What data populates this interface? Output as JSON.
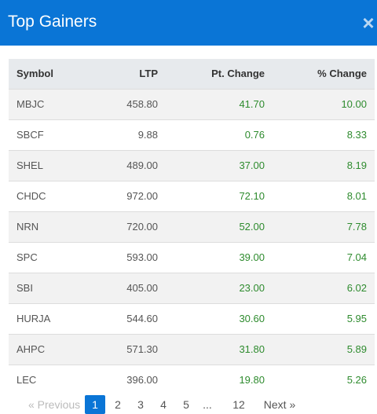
{
  "header": {
    "title": "Top Gainers",
    "close_glyph": "×"
  },
  "table": {
    "columns": [
      "Symbol",
      "LTP",
      "Pt. Change",
      "% Change"
    ],
    "rows": [
      {
        "symbol": "MBJC",
        "ltp": "458.80",
        "pt_change": "41.70",
        "pct_change": "10.00"
      },
      {
        "symbol": "SBCF",
        "ltp": "9.88",
        "pt_change": "0.76",
        "pct_change": "8.33"
      },
      {
        "symbol": "SHEL",
        "ltp": "489.00",
        "pt_change": "37.00",
        "pct_change": "8.19"
      },
      {
        "symbol": "CHDC",
        "ltp": "972.00",
        "pt_change": "72.10",
        "pct_change": "8.01"
      },
      {
        "symbol": "NRN",
        "ltp": "720.00",
        "pt_change": "52.00",
        "pct_change": "7.78"
      },
      {
        "symbol": "SPC",
        "ltp": "593.00",
        "pt_change": "39.00",
        "pct_change": "7.04"
      },
      {
        "symbol": "SBI",
        "ltp": "405.00",
        "pt_change": "23.00",
        "pct_change": "6.02"
      },
      {
        "symbol": "HURJA",
        "ltp": "544.60",
        "pt_change": "30.60",
        "pct_change": "5.95"
      },
      {
        "symbol": "AHPC",
        "ltp": "571.30",
        "pt_change": "31.80",
        "pct_change": "5.89"
      },
      {
        "symbol": "LEC",
        "ltp": "396.00",
        "pt_change": "19.80",
        "pct_change": "5.26"
      }
    ]
  },
  "pagination": {
    "previous": "« Previous",
    "pages": [
      "1",
      "2",
      "3",
      "4",
      "5"
    ],
    "ellipsis": "...",
    "last": "12",
    "next": "Next »",
    "current": "1"
  },
  "colors": {
    "header_bg": "#0a75d6",
    "positive": "#2e8b2e"
  }
}
